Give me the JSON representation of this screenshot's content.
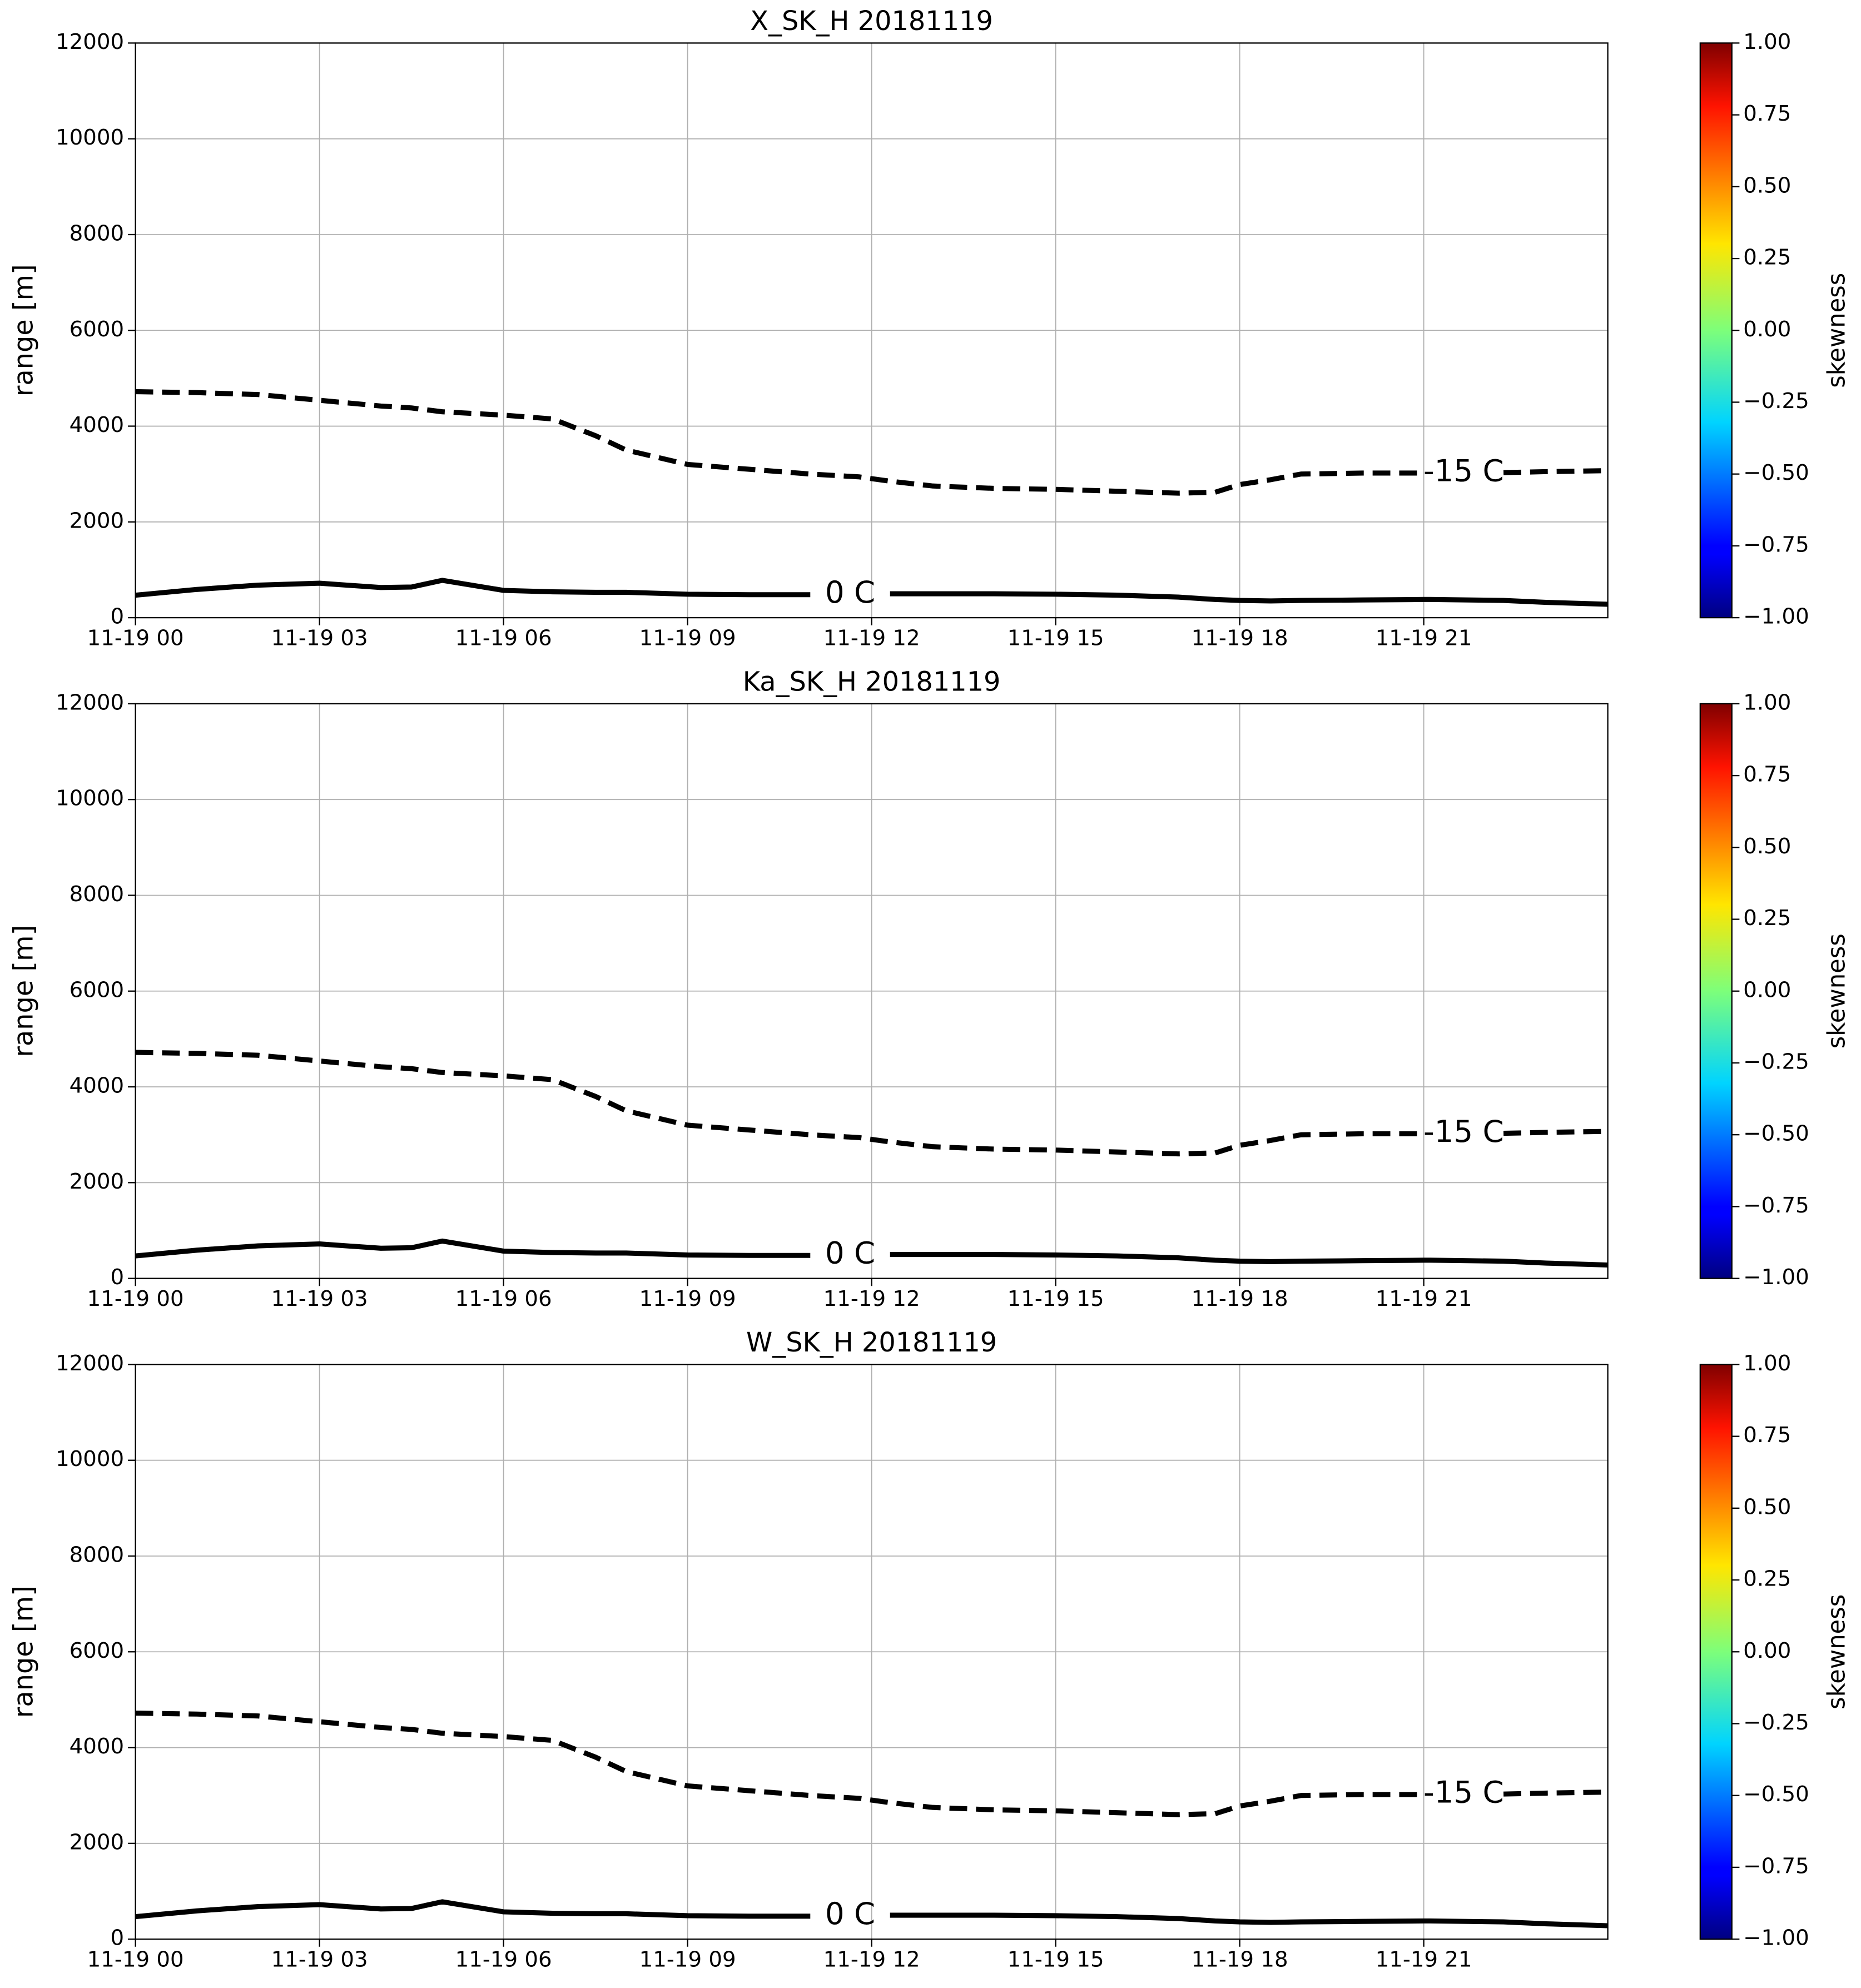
{
  "chart_data": [
    {
      "type": "line",
      "title": "X_SK_H 20181119",
      "ylabel": "range [m]",
      "grid": true,
      "xlim": [
        0,
        24
      ],
      "ylim": [
        0,
        12000
      ],
      "xticks": [
        {
          "value": 0,
          "label": "11-19 00"
        },
        {
          "value": 3,
          "label": "11-19 03"
        },
        {
          "value": 6,
          "label": "11-19 06"
        },
        {
          "value": 9,
          "label": "11-19 09"
        },
        {
          "value": 12,
          "label": "11-19 12"
        },
        {
          "value": 15,
          "label": "11-19 15"
        },
        {
          "value": 18,
          "label": "11-19 18"
        },
        {
          "value": 21,
          "label": "11-19 21"
        }
      ],
      "yticks": [
        0,
        2000,
        4000,
        6000,
        8000,
        10000,
        12000
      ],
      "x": [
        0,
        1,
        2,
        3,
        4,
        4.5,
        5,
        6,
        6.8,
        7.5,
        8,
        9,
        10,
        11,
        11.8,
        12.3,
        13,
        14,
        15,
        16,
        17,
        17.6,
        18,
        18.5,
        19,
        20,
        21,
        21.1,
        22.3,
        23,
        24
      ],
      "series": [
        {
          "name": "-15 C",
          "color": "#000000",
          "dash": true,
          "values": [
            4720,
            4700,
            4660,
            4540,
            4420,
            4380,
            4300,
            4230,
            4150,
            3800,
            3500,
            3200,
            3100,
            3000,
            2940,
            2850,
            2750,
            2700,
            2680,
            2640,
            2600,
            2620,
            2780,
            2880,
            3000,
            3020,
            3020,
            null,
            3030,
            3050,
            3070
          ]
        },
        {
          "name": "0 C",
          "color": "#000000",
          "dash": false,
          "values": [
            470,
            590,
            680,
            720,
            630,
            640,
            780,
            570,
            540,
            530,
            530,
            490,
            480,
            480,
            null,
            500,
            500,
            500,
            490,
            470,
            430,
            380,
            360,
            350,
            360,
            370,
            380,
            380,
            360,
            320,
            280
          ]
        }
      ],
      "colorbar": {
        "label": "skewness",
        "colormap": "jet",
        "lim": [
          -1,
          1
        ],
        "ticks": [
          {
            "value": 1,
            "label": "1.00"
          },
          {
            "value": 0.75,
            "label": "0.75"
          },
          {
            "value": 0.5,
            "label": "0.50"
          },
          {
            "value": 0.25,
            "label": "0.25"
          },
          {
            "value": 0,
            "label": "0.00"
          },
          {
            "value": -0.25,
            "label": "−0.25"
          },
          {
            "value": -0.5,
            "label": "−0.50"
          },
          {
            "value": -0.75,
            "label": "−0.75"
          },
          {
            "value": -1,
            "label": "−1.00"
          }
        ]
      }
    },
    {
      "type": "line",
      "title": "Ka_SK_H 20181119",
      "ylabel": "range [m]",
      "grid": true,
      "xlim": [
        0,
        24
      ],
      "ylim": [
        0,
        12000
      ],
      "xticks": [
        {
          "value": 0,
          "label": "11-19 00"
        },
        {
          "value": 3,
          "label": "11-19 03"
        },
        {
          "value": 6,
          "label": "11-19 06"
        },
        {
          "value": 9,
          "label": "11-19 09"
        },
        {
          "value": 12,
          "label": "11-19 12"
        },
        {
          "value": 15,
          "label": "11-19 15"
        },
        {
          "value": 18,
          "label": "11-19 18"
        },
        {
          "value": 21,
          "label": "11-19 21"
        }
      ],
      "yticks": [
        0,
        2000,
        4000,
        6000,
        8000,
        10000,
        12000
      ],
      "x": [
        0,
        1,
        2,
        3,
        4,
        4.5,
        5,
        6,
        6.8,
        7.5,
        8,
        9,
        10,
        11,
        11.8,
        12.3,
        13,
        14,
        15,
        16,
        17,
        17.6,
        18,
        18.5,
        19,
        20,
        21,
        21.1,
        22.3,
        23,
        24
      ],
      "series": [
        {
          "name": "-15 C",
          "color": "#000000",
          "dash": true,
          "values": [
            4720,
            4700,
            4660,
            4540,
            4420,
            4380,
            4300,
            4230,
            4150,
            3800,
            3500,
            3200,
            3100,
            3000,
            2940,
            2850,
            2750,
            2700,
            2680,
            2640,
            2600,
            2620,
            2780,
            2880,
            3000,
            3020,
            3020,
            null,
            3030,
            3050,
            3070
          ]
        },
        {
          "name": "0 C",
          "color": "#000000",
          "dash": false,
          "values": [
            470,
            590,
            680,
            720,
            630,
            640,
            780,
            570,
            540,
            530,
            530,
            490,
            480,
            480,
            null,
            500,
            500,
            500,
            490,
            470,
            430,
            380,
            360,
            350,
            360,
            370,
            380,
            380,
            360,
            320,
            280
          ]
        }
      ],
      "colorbar": {
        "label": "skewness",
        "colormap": "jet",
        "lim": [
          -1,
          1
        ],
        "ticks": [
          {
            "value": 1,
            "label": "1.00"
          },
          {
            "value": 0.75,
            "label": "0.75"
          },
          {
            "value": 0.5,
            "label": "0.50"
          },
          {
            "value": 0.25,
            "label": "0.25"
          },
          {
            "value": 0,
            "label": "0.00"
          },
          {
            "value": -0.25,
            "label": "−0.25"
          },
          {
            "value": -0.5,
            "label": "−0.50"
          },
          {
            "value": -0.75,
            "label": "−0.75"
          },
          {
            "value": -1,
            "label": "−1.00"
          }
        ]
      }
    },
    {
      "type": "line",
      "title": "W_SK_H 20181119",
      "ylabel": "range [m]",
      "grid": true,
      "xlim": [
        0,
        24
      ],
      "ylim": [
        0,
        12000
      ],
      "xticks": [
        {
          "value": 0,
          "label": "11-19 00"
        },
        {
          "value": 3,
          "label": "11-19 03"
        },
        {
          "value": 6,
          "label": "11-19 06"
        },
        {
          "value": 9,
          "label": "11-19 09"
        },
        {
          "value": 12,
          "label": "11-19 12"
        },
        {
          "value": 15,
          "label": "11-19 15"
        },
        {
          "value": 18,
          "label": "11-19 18"
        },
        {
          "value": 21,
          "label": "11-19 21"
        }
      ],
      "yticks": [
        0,
        2000,
        4000,
        6000,
        8000,
        10000,
        12000
      ],
      "x": [
        0,
        1,
        2,
        3,
        4,
        4.5,
        5,
        6,
        6.8,
        7.5,
        8,
        9,
        10,
        11,
        11.8,
        12.3,
        13,
        14,
        15,
        16,
        17,
        17.6,
        18,
        18.5,
        19,
        20,
        21,
        21.1,
        22.3,
        23,
        24
      ],
      "series": [
        {
          "name": "-15 C",
          "color": "#000000",
          "dash": true,
          "values": [
            4720,
            4700,
            4660,
            4540,
            4420,
            4380,
            4300,
            4230,
            4150,
            3800,
            3500,
            3200,
            3100,
            3000,
            2940,
            2850,
            2750,
            2700,
            2680,
            2640,
            2600,
            2620,
            2780,
            2880,
            3000,
            3020,
            3020,
            null,
            3030,
            3050,
            3070
          ]
        },
        {
          "name": "0 C",
          "color": "#000000",
          "dash": false,
          "values": [
            470,
            590,
            680,
            720,
            630,
            640,
            780,
            570,
            540,
            530,
            530,
            490,
            480,
            480,
            null,
            500,
            500,
            500,
            490,
            470,
            430,
            380,
            360,
            350,
            360,
            370,
            380,
            380,
            360,
            320,
            280
          ]
        }
      ],
      "colorbar": {
        "label": "skewness",
        "colormap": "jet",
        "lim": [
          -1,
          1
        ],
        "ticks": [
          {
            "value": 1,
            "label": "1.00"
          },
          {
            "value": 0.75,
            "label": "0.75"
          },
          {
            "value": 0.5,
            "label": "0.50"
          },
          {
            "value": 0.25,
            "label": "0.25"
          },
          {
            "value": 0,
            "label": "0.00"
          },
          {
            "value": -0.25,
            "label": "−0.25"
          },
          {
            "value": -0.5,
            "label": "−0.50"
          },
          {
            "value": -0.75,
            "label": "−0.75"
          },
          {
            "value": -1,
            "label": "−1.00"
          }
        ]
      }
    }
  ]
}
